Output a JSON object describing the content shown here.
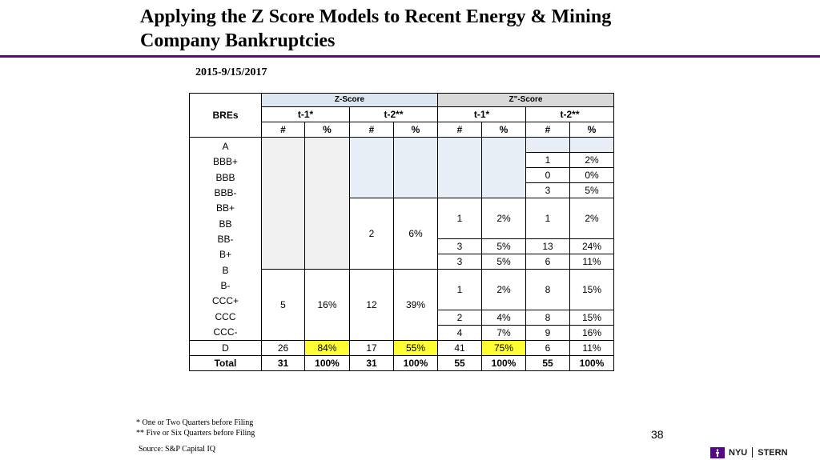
{
  "slide": {
    "title_line1": "Applying the Z Score Models to Recent Energy & Mining",
    "title_line2": "Company Bankruptcies",
    "date_range": "2015-9/15/2017",
    "page_number": "38",
    "footnote_1": "* One or Two Quarters before Filing",
    "footnote_2": "** Five or Six Quarters before Filing",
    "source": "Source: S&P Capital IQ",
    "logo": {
      "left": "NYU",
      "right": "STERN",
      "brand_color": "#57068c"
    }
  },
  "table": {
    "bres_header": "BREs",
    "group_zscore": "Z-Score",
    "group_zzscore": "Z\"-Score",
    "periods": [
      "t-1*",
      "t-2**",
      "t-1*",
      "t-2**"
    ],
    "subheaders": [
      "#",
      "%",
      "#",
      "%",
      "#",
      "%",
      "#",
      "%"
    ],
    "ratings": [
      "A",
      "BBB+",
      "BBB",
      "BBB-",
      "BB+",
      "BB",
      "BB-",
      "B+",
      "B",
      "B-",
      "CCC+",
      "CCC",
      "CCC-",
      "D",
      "Total"
    ],
    "z_t1_ccc_group": {
      "count": "5",
      "pct": "16%"
    },
    "z_t2_b_group": {
      "count": "2",
      "pct": "6%"
    },
    "z_t2_ccc_group": {
      "count": "12",
      "pct": "39%"
    },
    "zz_t1_rows": [
      {
        "count": "1",
        "pct": "2%"
      },
      {
        "count": "3",
        "pct": "5%"
      },
      {
        "count": "3",
        "pct": "5%"
      },
      {
        "count": "1",
        "pct": "2%"
      },
      {
        "count": "2",
        "pct": "4%"
      },
      {
        "count": "4",
        "pct": "7%"
      }
    ],
    "zz_t2_rows": [
      {
        "count": "1",
        "pct": "2%"
      },
      {
        "count": "0",
        "pct": "0%"
      },
      {
        "count": "3",
        "pct": "5%"
      },
      {
        "count": "1",
        "pct": "2%"
      },
      {
        "count": "13",
        "pct": "24%"
      },
      {
        "count": "6",
        "pct": "11%"
      },
      {
        "count": "8",
        "pct": "15%"
      },
      {
        "count": "8",
        "pct": "15%"
      },
      {
        "count": "9",
        "pct": "16%"
      }
    ],
    "d_row": [
      "26",
      "84%",
      "17",
      "55%",
      "41",
      "75%",
      "6",
      "11%"
    ],
    "total_row": [
      "31",
      "100%",
      "31",
      "100%",
      "55",
      "100%",
      "55",
      "100%"
    ],
    "highlight_color": "#ffff33"
  }
}
